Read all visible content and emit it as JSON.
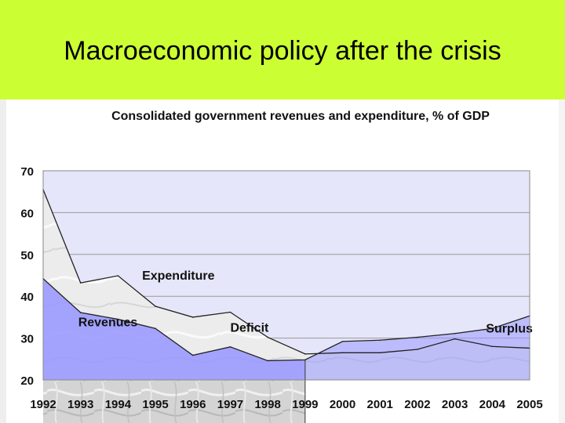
{
  "slide": {
    "title": "Macroeconomic policy after the crisis"
  },
  "colors": {
    "background": "#ccff33",
    "revenue_fill": "#9999ff",
    "expenditure_fill": "#d0d0d0",
    "plot_bg": "#e6e6fa"
  },
  "chart_data": {
    "type": "area",
    "title": "Consolidated government revenues and expenditure, % of GDP",
    "xlabel": "",
    "ylabel": "",
    "ylim": [
      20,
      70
    ],
    "yticks": [
      20,
      30,
      40,
      50,
      60,
      70
    ],
    "categories": [
      "1992",
      "1993",
      "1994",
      "1995",
      "1996",
      "1997",
      "1998",
      "1999",
      "2000",
      "2001",
      "2002",
      "2003",
      "2004",
      "2005"
    ],
    "series": [
      {
        "name": "Expenditure",
        "values": [
          65.5,
          43.2,
          44.9,
          37.6,
          35.0,
          36.2,
          30.2,
          26.2,
          26.5,
          26.5,
          27.3,
          29.8,
          28.0,
          27.6
        ]
      },
      {
        "name": "Revenues",
        "values": [
          44.2,
          36.1,
          34.5,
          32.3,
          25.9,
          27.9,
          24.6,
          24.8,
          29.2,
          29.5,
          30.2,
          31.1,
          32.3,
          35.3
        ]
      }
    ],
    "annotations": [
      {
        "text": "Expenditure",
        "x": "1995",
        "y": 44
      },
      {
        "text": "Revenues",
        "x": "1993",
        "y": 32.8
      },
      {
        "text": "Deficit",
        "x": "1997",
        "y": 31.5
      },
      {
        "text": "Surplus",
        "x": "2004",
        "y": 31.3
      }
    ],
    "grid": true,
    "legend": "none"
  }
}
